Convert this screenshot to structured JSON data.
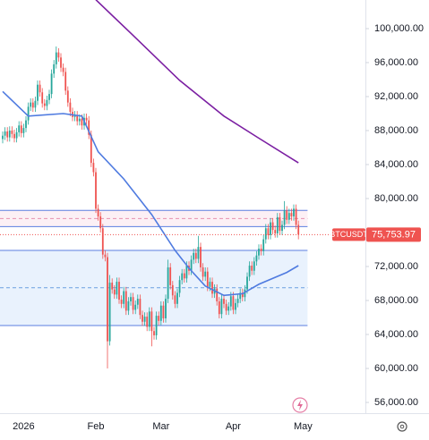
{
  "chart_data": {
    "type": "candlestick",
    "categories": [
      null,
      null,
      null,
      null,
      null,
      null,
      null,
      null,
      null,
      "2026",
      null,
      null,
      null,
      null,
      null,
      null,
      null,
      null,
      null,
      null,
      null,
      null,
      null,
      null,
      null,
      null,
      null,
      null,
      null,
      null,
      null,
      null,
      null,
      null,
      null,
      null,
      null,
      null,
      null,
      null,
      "Feb",
      null,
      null,
      null,
      null,
      null,
      null,
      null,
      null,
      null,
      null,
      null,
      null,
      null,
      null,
      null,
      null,
      null,
      null,
      null,
      null,
      null,
      null,
      null,
      null,
      null,
      null,
      null,
      "Mar",
      null,
      null,
      null,
      null,
      null,
      null,
      null,
      null,
      null,
      null,
      null,
      null,
      null,
      null,
      null,
      null,
      null,
      null,
      null,
      null,
      null,
      null,
      null,
      null,
      null,
      null,
      null,
      null,
      null,
      null,
      "Apr",
      null,
      null,
      null,
      null,
      null,
      null,
      null,
      null,
      null,
      null,
      null,
      null,
      null,
      null,
      null,
      null,
      null,
      null,
      null,
      null,
      null,
      null,
      null,
      null,
      null,
      null,
      null,
      null,
      null,
      "May"
    ],
    "open": [
      87000,
      87400,
      87900,
      87200,
      88000,
      87600,
      87100,
      87800,
      88600,
      87700,
      88300,
      89200,
      90800,
      91300,
      90700,
      91500,
      93400,
      92500,
      91200,
      90900,
      91600,
      92300,
      94700,
      95800,
      97200,
      96600,
      95400,
      94900,
      92700,
      91300,
      90200,
      89600,
      89800,
      89100,
      89400,
      88600,
      89500,
      89200,
      87500,
      84200,
      83100,
      78800,
      77900,
      76500,
      73400,
      73100,
      63200,
      70100,
      69300,
      68700,
      70200,
      68100,
      67600,
      69100,
      66800,
      67900,
      68400,
      66900,
      67500,
      68200,
      66300,
      65500,
      66100,
      64900,
      66700,
      64400,
      63900,
      66200,
      65600,
      67400,
      65900,
      68200,
      71900,
      69800,
      68600,
      67600,
      68900,
      70400,
      71200,
      70600,
      72100,
      71500,
      72800,
      73600,
      72900,
      74300,
      71900,
      70800,
      71400,
      69600,
      70200,
      68800,
      69400,
      67900,
      66400,
      68200,
      67600,
      66800,
      67300,
      68500,
      66900,
      67700,
      68200,
      68900,
      68400,
      69300,
      70800,
      72100,
      71500,
      72600,
      73300,
      74100,
      73800,
      75200,
      76500,
      75700,
      77200,
      76300,
      75900,
      77800,
      76200,
      76900,
      78600,
      77500,
      78300,
      77900,
      78800,
      76900,
      null,
      null
    ],
    "high": [
      87900,
      88400,
      88400,
      88500,
      88500,
      88100,
      88300,
      89100,
      89100,
      88800,
      89700,
      91300,
      91800,
      91800,
      92000,
      93900,
      93900,
      93000,
      91700,
      92100,
      92800,
      95200,
      96300,
      97900,
      97700,
      97100,
      95900,
      95400,
      93200,
      91800,
      90700,
      90300,
      90300,
      89900,
      89900,
      90000,
      90000,
      89700,
      88000,
      84700,
      83600,
      79300,
      78400,
      77000,
      73900,
      73600,
      71000,
      70600,
      69800,
      70700,
      70700,
      68600,
      69600,
      69600,
      68400,
      68900,
      68900,
      68000,
      68700,
      68700,
      66800,
      66600,
      66600,
      67200,
      67200,
      64900,
      66700,
      66700,
      67900,
      67900,
      68700,
      72800,
      72400,
      70300,
      69100,
      69400,
      70900,
      71700,
      71700,
      72600,
      72600,
      73300,
      74100,
      74100,
      75600,
      74800,
      72400,
      71900,
      71900,
      70700,
      70700,
      69900,
      69900,
      68400,
      68700,
      68700,
      68100,
      67800,
      69000,
      69000,
      68200,
      68700,
      69400,
      69400,
      69800,
      71300,
      72600,
      72600,
      73100,
      73800,
      74600,
      74600,
      75700,
      77000,
      77000,
      77700,
      77700,
      76800,
      78300,
      78300,
      77400,
      79700,
      79100,
      78800,
      78800,
      79300,
      79300,
      77400,
      null,
      null
    ],
    "low": [
      86500,
      86900,
      86700,
      86700,
      87100,
      86600,
      86600,
      87300,
      87200,
      87200,
      87800,
      88700,
      90300,
      90200,
      90200,
      91000,
      92000,
      90700,
      90400,
      90400,
      91100,
      91800,
      94200,
      95300,
      96100,
      94900,
      94400,
      92200,
      90800,
      89700,
      89100,
      89100,
      88600,
      88600,
      88100,
      88100,
      88700,
      87000,
      83700,
      82600,
      78300,
      77400,
      76000,
      72900,
      72600,
      60000,
      62700,
      68800,
      68200,
      68200,
      67600,
      67100,
      67100,
      66300,
      66300,
      67400,
      66400,
      66400,
      67000,
      65800,
      65000,
      65000,
      64400,
      64400,
      62600,
      63400,
      63400,
      65100,
      65100,
      65400,
      65400,
      67700,
      69300,
      68100,
      67100,
      67100,
      68400,
      69900,
      70100,
      70100,
      71000,
      71000,
      72300,
      72400,
      72400,
      71400,
      70300,
      70300,
      69100,
      69100,
      68300,
      68300,
      67400,
      65900,
      65900,
      67100,
      66300,
      66300,
      66800,
      66400,
      66400,
      67200,
      67700,
      67900,
      67900,
      68800,
      70300,
      71000,
      71000,
      72100,
      72800,
      73300,
      73300,
      74700,
      75200,
      75200,
      75800,
      75400,
      75400,
      75700,
      75700,
      76400,
      77000,
      77000,
      77400,
      77400,
      76400,
      75200,
      null,
      null
    ],
    "close": [
      87400,
      87900,
      87200,
      88000,
      87600,
      87100,
      87800,
      88600,
      87700,
      88300,
      89200,
      90800,
      91300,
      90700,
      91500,
      93400,
      92500,
      91200,
      90900,
      91600,
      92300,
      94700,
      95800,
      97200,
      96600,
      95400,
      94900,
      92700,
      91300,
      90200,
      89600,
      89800,
      89100,
      89400,
      88600,
      89500,
      89200,
      87500,
      84200,
      83100,
      78800,
      77900,
      76500,
      73400,
      73100,
      63200,
      70100,
      69300,
      68700,
      70200,
      68100,
      67600,
      69100,
      66800,
      67900,
      68400,
      66900,
      67500,
      68200,
      66300,
      65500,
      66100,
      64900,
      66700,
      64400,
      63900,
      66200,
      65600,
      67400,
      65900,
      68200,
      71900,
      69800,
      68600,
      67600,
      68900,
      70400,
      71200,
      70600,
      72100,
      71500,
      72800,
      73600,
      72900,
      74300,
      71900,
      70800,
      71400,
      69600,
      70200,
      68800,
      69400,
      67900,
      66400,
      68200,
      67600,
      66800,
      67300,
      68500,
      66900,
      67700,
      68200,
      68900,
      68400,
      69300,
      70800,
      72100,
      71500,
      72600,
      73300,
      74100,
      73800,
      75200,
      76500,
      75700,
      77200,
      76300,
      75900,
      77800,
      76200,
      76900,
      78600,
      77500,
      78300,
      77900,
      78800,
      76900,
      75753.97,
      null,
      null
    ],
    "up_color": "#26a69a",
    "down_color": "#ef5350",
    "ylim": [
      54737,
      103368
    ],
    "yticks": [
      {
        "value": 100000,
        "label": "100,000.00"
      },
      {
        "value": 96000,
        "label": "96,000.00"
      },
      {
        "value": 92000,
        "label": "92,000.00"
      },
      {
        "value": 88000,
        "label": "88,000.00"
      },
      {
        "value": 84000,
        "label": "84,000.00"
      },
      {
        "value": 80000,
        "label": "80,000.00"
      },
      {
        "value": 76000,
        "label": "76,000.00"
      },
      {
        "value": 72000,
        "label": "72,000.00"
      },
      {
        "value": 68000,
        "label": "68,000.00"
      },
      {
        "value": 64000,
        "label": "64,000.00"
      },
      {
        "value": 60000,
        "label": "60,000.00"
      },
      {
        "value": 56000,
        "label": "56,000.00"
      }
    ],
    "lines": [
      {
        "color": "#4f7be0",
        "x": [
          0,
          11,
          26,
          34,
          41,
          52,
          64,
          74,
          80,
          87,
          95,
          103,
          110,
          122,
          127
        ],
        "values": [
          92600,
          89700,
          90000,
          89700,
          85500,
          82300,
          78100,
          73900,
          71800,
          69700,
          68600,
          68800,
          69900,
          71300,
          72100
        ]
      },
      {
        "color": "#7b1fa2",
        "x": [
          40,
          56,
          76,
          95,
          110,
          127
        ],
        "values": [
          103400,
          99200,
          93900,
          89700,
          87100,
          84200
        ]
      }
    ],
    "zones": [
      {
        "top": 78600,
        "mid": 77650,
        "bottom": 76700,
        "fill": "rgba(236,170,200,0.18)",
        "border": "#5b7fe0",
        "mid_color": "#e58fb0"
      },
      {
        "top": 73900,
        "mid": 69500,
        "bottom": 65050,
        "fill": "rgba(100,160,240,0.14)",
        "border": "#5b7fe0",
        "mid_color": "#6aa0e0"
      }
    ],
    "price_label": {
      "symbol": "BTCUSDT",
      "value": 75753.97,
      "label": "75,753.97",
      "color": "#ef5350"
    }
  }
}
